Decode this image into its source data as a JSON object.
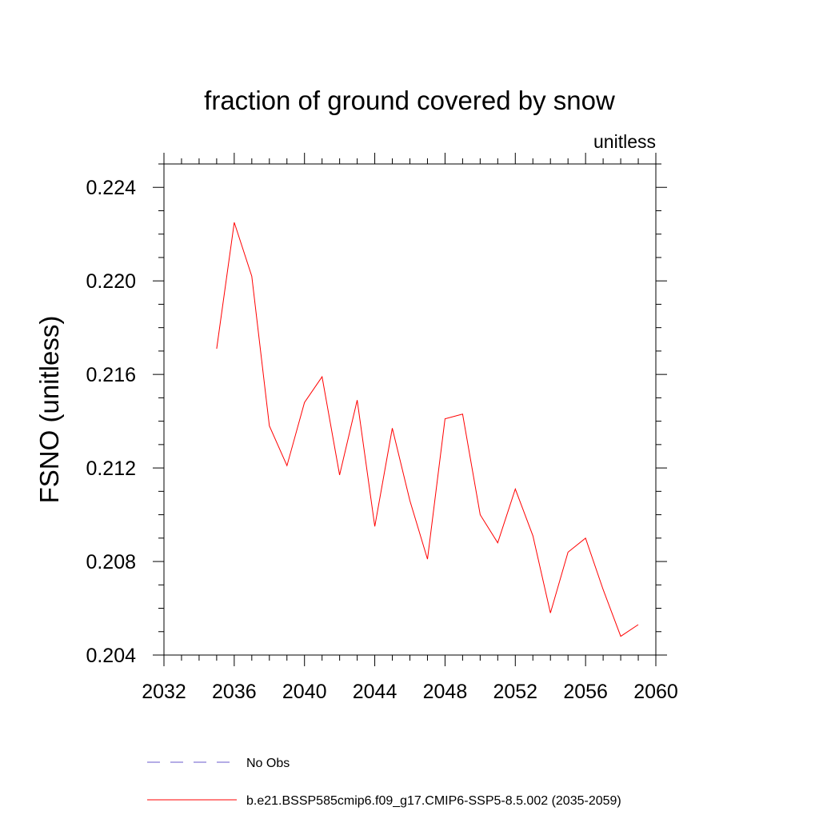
{
  "chart_data": {
    "type": "line",
    "title": "fraction of ground covered by snow",
    "units_label": "unitless",
    "ylabel": "FSNO  (unitless)",
    "xlabel": "",
    "xlim": [
      2032,
      2060
    ],
    "ylim": [
      0.204,
      0.225
    ],
    "x_ticks": [
      2032,
      2036,
      2040,
      2044,
      2048,
      2052,
      2056,
      2060
    ],
    "x_tick_labels": [
      "2032",
      "2036",
      "2040",
      "2044",
      "2048",
      "2052",
      "2056",
      "2060"
    ],
    "y_ticks": [
      0.204,
      0.208,
      0.212,
      0.216,
      0.22,
      0.224
    ],
    "y_tick_labels": [
      "0.204",
      "0.208",
      "0.212",
      "0.216",
      "0.220",
      "0.224"
    ],
    "grid": false,
    "legend_position": "bottom",
    "series": [
      {
        "name": "b.e21.BSSP585cmip6.f09_g17.CMIP6-SSP5-8.5.002 (2035-2059)",
        "color": "#ff0000",
        "dash": "solid",
        "x": [
          2035,
          2036,
          2037,
          2038,
          2039,
          2040,
          2041,
          2042,
          2043,
          2044,
          2045,
          2046,
          2047,
          2048,
          2049,
          2050,
          2051,
          2052,
          2053,
          2054,
          2055,
          2056,
          2057,
          2058,
          2059
        ],
        "y": [
          0.2171,
          0.2225,
          0.2202,
          0.2138,
          0.2121,
          0.2148,
          0.2159,
          0.2117,
          0.2149,
          0.2095,
          0.2137,
          0.2106,
          0.2081,
          0.2141,
          0.2143,
          0.21,
          0.2088,
          0.2111,
          0.2091,
          0.2058,
          0.2084,
          0.209,
          0.2068,
          0.2048,
          0.2053
        ]
      }
    ],
    "legend": [
      {
        "label": "No Obs",
        "color": "#6a5acd",
        "dash": "dashed"
      },
      {
        "label": "b.e21.BSSP585cmip6.f09_g17.CMIP6-SSP5-8.5.002 (2035-2059)",
        "color": "#ff0000",
        "dash": "solid"
      }
    ]
  }
}
